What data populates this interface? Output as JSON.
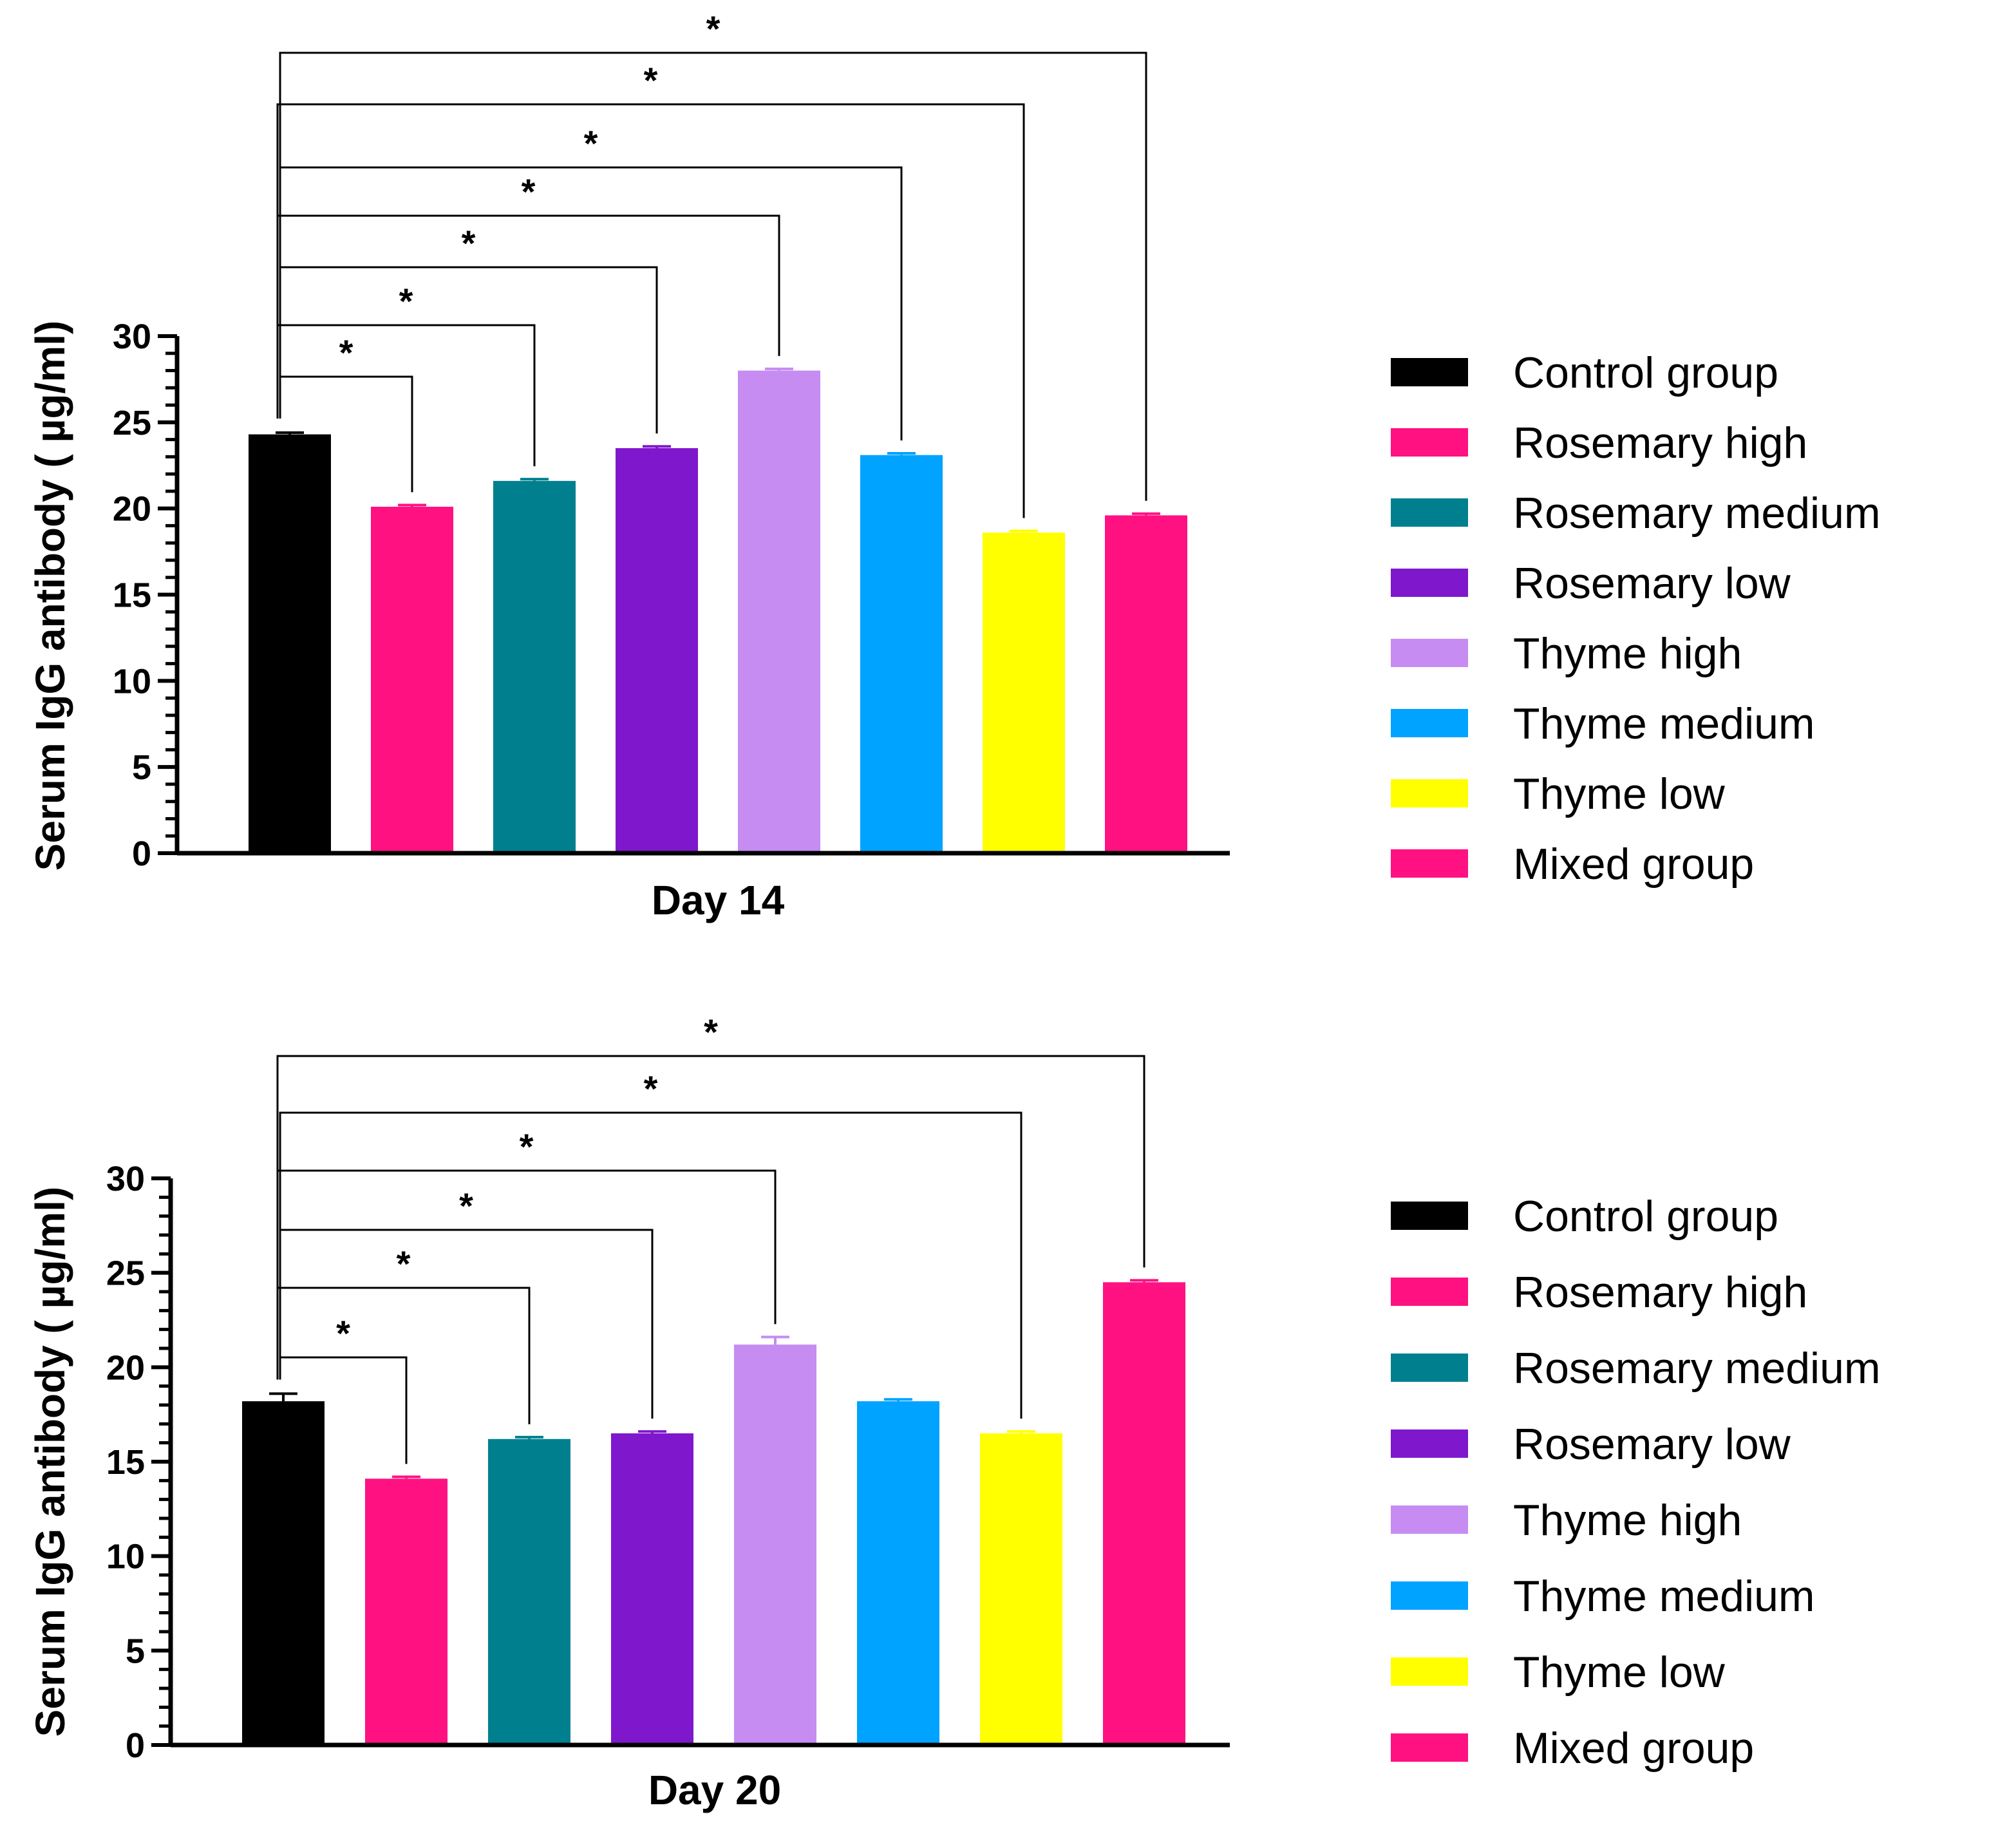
{
  "chart_data": [
    {
      "type": "bar",
      "xlabel": "Day 14",
      "ylabel": "Serum IgG antibody ( µg/ml)",
      "ylim": [
        0,
        30
      ],
      "yticks": [
        "0",
        "5",
        "10",
        "15",
        "20",
        "25",
        "30"
      ],
      "categories": [
        "Control group",
        "Rosemary high",
        "Rosemary medium",
        "Rosemary low",
        "Thyme high",
        "Thyme medium",
        "Thyme low",
        "Mixed group"
      ],
      "values": [
        24.3,
        20.1,
        21.6,
        23.5,
        28.0,
        23.1,
        18.6,
        19.6
      ],
      "errors": [
        0.1,
        0.1,
        0.1,
        0.1,
        0.1,
        0.1,
        0.1,
        0.1
      ],
      "significance": [
        {
          "from": 0,
          "to": 1,
          "label": "*"
        },
        {
          "from": 0,
          "to": 2,
          "label": "*"
        },
        {
          "from": 0,
          "to": 3,
          "label": "*"
        },
        {
          "from": 0,
          "to": 4,
          "label": "*"
        },
        {
          "from": 0,
          "to": 5,
          "label": "*"
        },
        {
          "from": 0,
          "to": 6,
          "label": "*"
        },
        {
          "from": 0,
          "to": 7,
          "label": "*"
        }
      ],
      "legend": "right"
    },
    {
      "type": "bar",
      "xlabel": "Day 20",
      "ylabel": "Serum IgG antibody ( µg/ml)",
      "ylim": [
        0,
        30
      ],
      "yticks": [
        "0",
        "5",
        "10",
        "15",
        "20",
        "25",
        "30"
      ],
      "categories": [
        "Control group",
        "Rosemary high",
        "Rosemary medium",
        "Rosemary low",
        "Thyme high",
        "Thyme medium",
        "Thyme low",
        "Mixed group"
      ],
      "values": [
        18.2,
        14.1,
        16.2,
        16.5,
        21.2,
        18.2,
        16.5,
        24.5
      ],
      "errors": [
        0.4,
        0.1,
        0.1,
        0.1,
        0.4,
        0.1,
        0.1,
        0.1
      ],
      "significance": [
        {
          "from": 0,
          "to": 1,
          "label": "*"
        },
        {
          "from": 0,
          "to": 2,
          "label": "*"
        },
        {
          "from": 0,
          "to": 3,
          "label": "*"
        },
        {
          "from": 0,
          "to": 4,
          "label": "*"
        },
        {
          "from": 0,
          "to": 6,
          "label": "*"
        },
        {
          "from": 0,
          "to": 7,
          "label": "*"
        }
      ],
      "legend": "right"
    }
  ],
  "colors": [
    "#000000",
    "#ff1182",
    "#00808f",
    "#7f18cc",
    "#c68cf2",
    "#00a3ff",
    "#ffff00",
    "#ff1182"
  ]
}
